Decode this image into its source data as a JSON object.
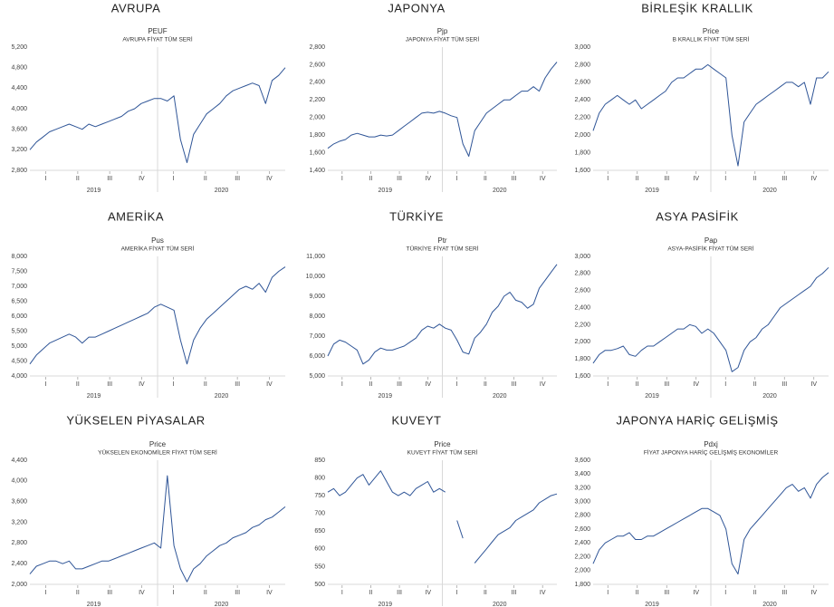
{
  "chart_data": [
    {
      "type": "line",
      "title": "AVRUPA",
      "subtitle": "AVRUPA FİYAT TÜM SERİ",
      "series": [
        {
          "name": "PEUF",
          "color": "#2f5597",
          "values": [
            3200,
            3350,
            3450,
            3550,
            3600,
            3650,
            3700,
            3650,
            3600,
            3700,
            3650,
            3700,
            3750,
            3800,
            3850,
            3950,
            4000,
            4100,
            4150,
            4200,
            4200,
            4150,
            4250,
            3400,
            2950,
            3500,
            3700,
            3900,
            4000,
            4100,
            4250,
            4350,
            4400,
            4450,
            4500,
            4450,
            4100,
            4550,
            4650,
            4800
          ]
        }
      ],
      "ylim": [
        2800,
        5200
      ],
      "yticks": [
        {
          "value": 2800,
          "label": "2,800"
        },
        {
          "value": 3200,
          "label": "3,200"
        },
        {
          "value": 3600,
          "label": "3,600"
        },
        {
          "value": 4000,
          "label": "4,000"
        },
        {
          "value": 4400,
          "label": "4,400"
        },
        {
          "value": 4800,
          "label": "4,800"
        },
        {
          "value": 5200,
          "label": "5,200"
        }
      ],
      "quarter_labels": [
        "I",
        "II",
        "III",
        "IV",
        "I",
        "II",
        "III",
        "IV"
      ],
      "year_labels": [
        "2019",
        "2020"
      ]
    },
    {
      "type": "line",
      "title": "JAPONYA",
      "subtitle": "JAPONYA FİYAT TÜM SERİ",
      "series": [
        {
          "name": "Pjp",
          "color": "#2f5597",
          "values": [
            1650,
            1700,
            1730,
            1750,
            1800,
            1820,
            1800,
            1780,
            1780,
            1800,
            1790,
            1800,
            1850,
            1900,
            1950,
            2000,
            2050,
            2060,
            2050,
            2070,
            2050,
            2020,
            2000,
            1700,
            1560,
            1850,
            1950,
            2050,
            2100,
            2150,
            2200,
            2200,
            2250,
            2300,
            2300,
            2350,
            2300,
            2450,
            2550,
            2630
          ]
        }
      ],
      "ylim": [
        1400,
        2800
      ],
      "yticks": [
        {
          "value": 1400,
          "label": "1,400"
        },
        {
          "value": 1600,
          "label": "1,600"
        },
        {
          "value": 1800,
          "label": "1,800"
        },
        {
          "value": 2000,
          "label": "2,000"
        },
        {
          "value": 2200,
          "label": "2,200"
        },
        {
          "value": 2400,
          "label": "2,400"
        },
        {
          "value": 2600,
          "label": "2,600"
        },
        {
          "value": 2800,
          "label": "2,800"
        }
      ],
      "quarter_labels": [
        "I",
        "II",
        "III",
        "IV",
        "I",
        "II",
        "III",
        "IV"
      ],
      "year_labels": [
        "2019",
        "2020"
      ]
    },
    {
      "type": "line",
      "title": "BİRLEŞİK KRALLIK",
      "subtitle": "B KRALLIK FİYAT TÜM SERİ",
      "series": [
        {
          "name": "Price",
          "color": "#2f5597",
          "values": [
            2050,
            2250,
            2350,
            2400,
            2450,
            2400,
            2350,
            2400,
            2300,
            2350,
            2400,
            2450,
            2500,
            2600,
            2650,
            2650,
            2700,
            2750,
            2750,
            2800,
            2750,
            2700,
            2650,
            2000,
            1650,
            2150,
            2250,
            2350,
            2400,
            2450,
            2500,
            2550,
            2600,
            2600,
            2550,
            2600,
            2350,
            2650,
            2650,
            2720
          ]
        }
      ],
      "ylim": [
        1600,
        3000
      ],
      "yticks": [
        {
          "value": 1600,
          "label": "1,600"
        },
        {
          "value": 1800,
          "label": "1,800"
        },
        {
          "value": 2000,
          "label": "2,000"
        },
        {
          "value": 2200,
          "label": "2,200"
        },
        {
          "value": 2400,
          "label": "2,400"
        },
        {
          "value": 2600,
          "label": "2,600"
        },
        {
          "value": 2800,
          "label": "2,800"
        },
        {
          "value": 3000,
          "label": "3,000"
        }
      ],
      "quarter_labels": [
        "I",
        "II",
        "III",
        "IV",
        "I",
        "II",
        "III",
        "IV"
      ],
      "year_labels": [
        "2019",
        "2020"
      ]
    },
    {
      "type": "line",
      "title": "AMERİKA",
      "subtitle": "AMERİKA FİYAT TÜM SERİ",
      "series": [
        {
          "name": "Pus",
          "color": "#2f5597",
          "values": [
            4400,
            4700,
            4900,
            5100,
            5200,
            5300,
            5400,
            5300,
            5100,
            5300,
            5300,
            5400,
            5500,
            5600,
            5700,
            5800,
            5900,
            6000,
            6100,
            6300,
            6400,
            6300,
            6200,
            5200,
            4400,
            5200,
            5600,
            5900,
            6100,
            6300,
            6500,
            6700,
            6900,
            7000,
            6900,
            7100,
            6800,
            7300,
            7500,
            7650
          ]
        }
      ],
      "ylim": [
        4000,
        8000
      ],
      "yticks": [
        {
          "value": 4000,
          "label": "4,000"
        },
        {
          "value": 4500,
          "label": "4,500"
        },
        {
          "value": 5000,
          "label": "5,000"
        },
        {
          "value": 5500,
          "label": "5,500"
        },
        {
          "value": 6000,
          "label": "6,000"
        },
        {
          "value": 6500,
          "label": "6,500"
        },
        {
          "value": 7000,
          "label": "7,000"
        },
        {
          "value": 7500,
          "label": "7,500"
        },
        {
          "value": 8000,
          "label": "8,000"
        }
      ],
      "quarter_labels": [
        "I",
        "II",
        "III",
        "IV",
        "I",
        "II",
        "III",
        "IV"
      ],
      "year_labels": [
        "2019",
        "2020"
      ]
    },
    {
      "type": "line",
      "title": "TÜRKİYE",
      "subtitle": "TÜRKİYE FİYAT TÜM SERİ",
      "series": [
        {
          "name": "Ptr",
          "color": "#2f5597",
          "values": [
            6000,
            6600,
            6800,
            6700,
            6500,
            6300,
            5600,
            5800,
            6200,
            6400,
            6300,
            6300,
            6400,
            6500,
            6700,
            6900,
            7300,
            7500,
            7400,
            7600,
            7400,
            7300,
            6800,
            6200,
            6100,
            6900,
            7200,
            7600,
            8200,
            8500,
            9000,
            9200,
            8800,
            8700,
            8400,
            8600,
            9400,
            9800,
            10200,
            10600
          ]
        }
      ],
      "ylim": [
        5000,
        11000
      ],
      "yticks": [
        {
          "value": 5000,
          "label": "5,000"
        },
        {
          "value": 6000,
          "label": "6,000"
        },
        {
          "value": 7000,
          "label": "7,000"
        },
        {
          "value": 8000,
          "label": "8,000"
        },
        {
          "value": 9000,
          "label": "9,000"
        },
        {
          "value": 10000,
          "label": "10,000"
        },
        {
          "value": 11000,
          "label": "11,000"
        }
      ],
      "quarter_labels": [
        "I",
        "II",
        "III",
        "IV",
        "I",
        "II",
        "III",
        "IV"
      ],
      "year_labels": [
        "2019",
        "2020"
      ]
    },
    {
      "type": "line",
      "title": "ASYA PASİFİK",
      "subtitle": "ASYA-PASİFİK FİYAT TÜM SERİ",
      "series": [
        {
          "name": "Pap",
          "color": "#2f5597",
          "values": [
            1750,
            1850,
            1900,
            1900,
            1920,
            1950,
            1850,
            1830,
            1900,
            1950,
            1950,
            2000,
            2050,
            2100,
            2150,
            2150,
            2200,
            2180,
            2100,
            2150,
            2100,
            2000,
            1900,
            1650,
            1700,
            1900,
            2000,
            2050,
            2150,
            2200,
            2300,
            2400,
            2450,
            2500,
            2550,
            2600,
            2650,
            2750,
            2800,
            2870
          ]
        }
      ],
      "ylim": [
        1600,
        3000
      ],
      "yticks": [
        {
          "value": 1600,
          "label": "1,600"
        },
        {
          "value": 1800,
          "label": "1,800"
        },
        {
          "value": 2000,
          "label": "2,000"
        },
        {
          "value": 2200,
          "label": "2,200"
        },
        {
          "value": 2400,
          "label": "2,400"
        },
        {
          "value": 2600,
          "label": "2,600"
        },
        {
          "value": 2800,
          "label": "2,800"
        },
        {
          "value": 3000,
          "label": "3,000"
        }
      ],
      "quarter_labels": [
        "I",
        "II",
        "III",
        "IV",
        "I",
        "II",
        "III",
        "IV"
      ],
      "year_labels": [
        "2019",
        "2020"
      ]
    },
    {
      "type": "line",
      "title": "YÜKSELEN PİYASALAR",
      "subtitle": "YÜKSELEN EKONOMİLER FİYAT TÜM SERİ",
      "series": [
        {
          "name": "Price",
          "color": "#2f5597",
          "values": [
            2200,
            2350,
            2400,
            2450,
            2450,
            2400,
            2450,
            2300,
            2300,
            2350,
            2400,
            2450,
            2450,
            2500,
            2550,
            2600,
            2650,
            2700,
            2750,
            2800,
            2700,
            4100,
            2750,
            2300,
            2050,
            2300,
            2400,
            2550,
            2650,
            2750,
            2800,
            2900,
            2950,
            3000,
            3100,
            3150,
            3250,
            3300,
            3400,
            3500
          ]
        }
      ],
      "ylim": [
        2000,
        4400
      ],
      "yticks": [
        {
          "value": 2000,
          "label": "2,000"
        },
        {
          "value": 2400,
          "label": "2,400"
        },
        {
          "value": 2800,
          "label": "2,800"
        },
        {
          "value": 3200,
          "label": "3,200"
        },
        {
          "value": 3600,
          "label": "3,600"
        },
        {
          "value": 4000,
          "label": "4,000"
        },
        {
          "value": 4400,
          "label": "4,400"
        }
      ],
      "quarter_labels": [
        "I",
        "II",
        "III",
        "IV",
        "I",
        "II",
        "III",
        "IV"
      ],
      "year_labels": [
        "2019",
        "2020"
      ]
    },
    {
      "type": "line",
      "title": "KUVEYT",
      "subtitle": "KUVEYT FİYAT TÜM SERİ",
      "series": [
        {
          "name": "Price",
          "color": "#2f5597",
          "values": [
            760,
            770,
            750,
            760,
            780,
            800,
            810,
            780,
            800,
            820,
            790,
            760,
            750,
            760,
            750,
            770,
            780,
            790,
            760,
            770,
            760,
            null,
            680,
            630,
            null,
            560,
            580,
            600,
            620,
            640,
            650,
            660,
            680,
            690,
            700,
            710,
            730,
            740,
            750,
            755
          ]
        }
      ],
      "ylim": [
        500,
        850
      ],
      "yticks": [
        500,
        550,
        600,
        650,
        700,
        750,
        800,
        850
      ],
      "quarter_labels": [
        "I",
        "II",
        "III",
        "IV",
        "I",
        "II",
        "III",
        "IV"
      ],
      "year_labels": [
        "2019",
        "2020"
      ]
    },
    {
      "type": "line",
      "title": "JAPONYA HARİÇ GELİŞMİŞ",
      "subtitle": "FİYAT JAPONYA HARİÇ GELİŞMİŞ EKONOMİLER",
      "series": [
        {
          "name": "Pdxj",
          "color": "#2f5597",
          "values": [
            2100,
            2300,
            2400,
            2450,
            2500,
            2500,
            2550,
            2450,
            2450,
            2500,
            2500,
            2550,
            2600,
            2650,
            2700,
            2750,
            2800,
            2850,
            2900,
            2900,
            2850,
            2800,
            2600,
            2100,
            1950,
            2450,
            2600,
            2700,
            2800,
            2900,
            3000,
            3100,
            3200,
            3250,
            3150,
            3200,
            3050,
            3250,
            3350,
            3420
          ]
        }
      ],
      "ylim": [
        1800,
        3600
      ],
      "yticks": [
        {
          "value": 1800,
          "label": "1,800"
        },
        {
          "value": 2000,
          "label": "2,000"
        },
        {
          "value": 2200,
          "label": "2,200"
        },
        {
          "value": 2400,
          "label": "2,400"
        },
        {
          "value": 2600,
          "label": "2,600"
        },
        {
          "value": 2800,
          "label": "2,800"
        },
        {
          "value": 3000,
          "label": "3,000"
        },
        {
          "value": 3200,
          "label": "3,200"
        },
        {
          "value": 3400,
          "label": "3,400"
        },
        {
          "value": 3600,
          "label": "3,600"
        }
      ],
      "quarter_labels": [
        "I",
        "II",
        "III",
        "IV",
        "I",
        "II",
        "III",
        "IV"
      ],
      "year_labels": [
        "2019",
        "2020"
      ]
    }
  ]
}
